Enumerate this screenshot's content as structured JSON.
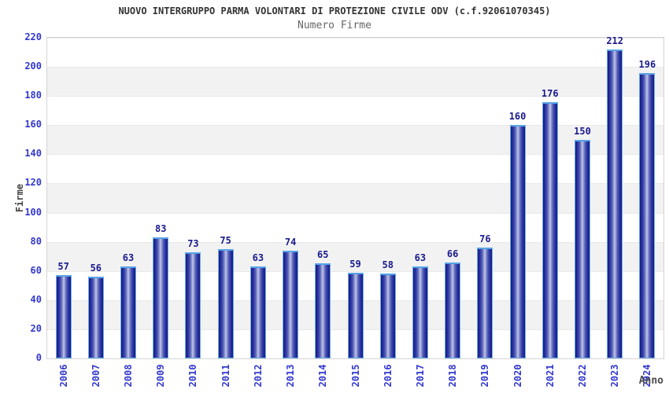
{
  "header": {
    "title": "NUOVO INTERGRUPPO PARMA VOLONTARI DI PROTEZIONE CIVILE ODV (c.f.92061070345)",
    "subtitle": "Numero Firme"
  },
  "chart_data": {
    "type": "bar",
    "title": "NUOVO INTERGRUPPO PARMA VOLONTARI DI PROTEZIONE CIVILE ODV (c.f.92061070345)",
    "subtitle": "Numero Firme",
    "categories": [
      "2006",
      "2007",
      "2008",
      "2009",
      "2010",
      "2011",
      "2012",
      "2013",
      "2014",
      "2015",
      "2016",
      "2017",
      "2018",
      "2019",
      "2020",
      "2021",
      "2022",
      "2023",
      "2024"
    ],
    "values": [
      57,
      56,
      63,
      83,
      73,
      75,
      63,
      74,
      65,
      59,
      58,
      63,
      66,
      76,
      160,
      176,
      150,
      212,
      196
    ],
    "xlabel": "Anno",
    "ylabel": "Firme",
    "ylim": [
      0,
      220
    ],
    "ytick_step": 20,
    "grid": "alternating horizontal bands, light gray on 20-40/60-80/100-120/140-160/180-200",
    "legend": "none",
    "bar_labels_shown": true,
    "colors": {
      "bar_edge": "#161b7d",
      "bar_center_highlight": "#c4c9e8",
      "bar_outline": "#6cb0e8",
      "bar_top_cap": "#55a3e6",
      "value_label": "#1a1a8e",
      "tick_label": "#3238cd",
      "title": "#333333",
      "subtitle": "#666666",
      "axis_label": "#444444",
      "band_gray": "#f2f2f2",
      "plot_border": "#d4d4d4"
    }
  }
}
